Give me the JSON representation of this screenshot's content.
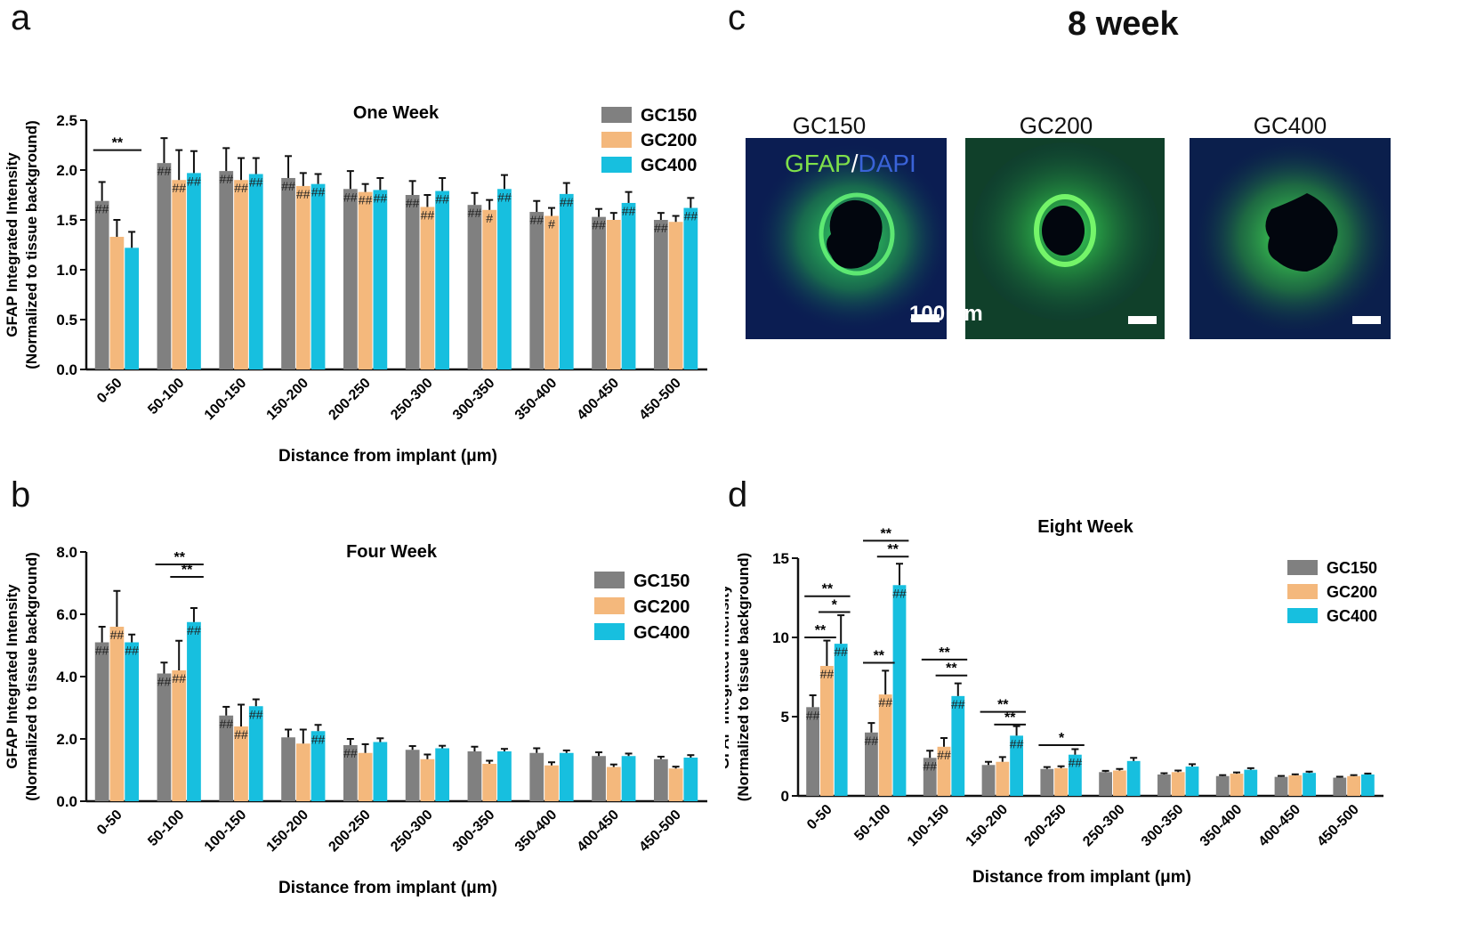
{
  "panels": {
    "a": "a",
    "b": "b",
    "c": "c",
    "d": "d"
  },
  "colors": {
    "GC150": "#808080",
    "GC200": "#f4b87c",
    "GC400": "#17bfdf"
  },
  "micrographs": {
    "title": "8 week",
    "labels": [
      "GC150",
      "GC200",
      "GC400"
    ],
    "stain_gfap": "GFAP",
    "stain_sep": "/",
    "stain_dapi": "DAPI",
    "scale_label": "100 μm"
  },
  "chart_data": [
    {
      "type": "bar",
      "panel": "a",
      "title": "One Week",
      "xlabel": "Distance from implant (μm)",
      "ylabel": [
        "GFAP Integrated Intensity",
        "(Normalized to tissue background)"
      ],
      "ylim": [
        0,
        2.5
      ],
      "yticks": [
        "0.0",
        "0.5",
        "1.0",
        "1.5",
        "2.0",
        "2.5"
      ],
      "categories": [
        "0-50",
        "50-100",
        "100-150",
        "150-200",
        "200-250",
        "250-300",
        "300-350",
        "350-400",
        "400-450",
        "450-500"
      ],
      "series": [
        {
          "name": "GC150",
          "values": [
            1.69,
            2.07,
            1.99,
            1.92,
            1.81,
            1.75,
            1.65,
            1.58,
            1.53,
            1.5
          ],
          "errors": [
            0.19,
            0.25,
            0.23,
            0.22,
            0.18,
            0.14,
            0.12,
            0.11,
            0.08,
            0.07
          ],
          "marks": [
            "##",
            "##",
            "##",
            "##",
            "##",
            "##",
            "##",
            "##",
            "##",
            "##"
          ]
        },
        {
          "name": "GC200",
          "values": [
            1.33,
            1.9,
            1.9,
            1.84,
            1.78,
            1.63,
            1.6,
            1.54,
            1.5,
            1.48
          ],
          "errors": [
            0.17,
            0.3,
            0.22,
            0.13,
            0.08,
            0.12,
            0.1,
            0.08,
            0.07,
            0.06
          ],
          "marks": [
            "",
            "##",
            "##",
            "##",
            "##",
            "##",
            "#",
            "#",
            "",
            ""
          ]
        },
        {
          "name": "GC400",
          "values": [
            1.22,
            1.97,
            1.96,
            1.86,
            1.8,
            1.79,
            1.81,
            1.76,
            1.67,
            1.62
          ],
          "errors": [
            0.16,
            0.22,
            0.16,
            0.1,
            0.12,
            0.13,
            0.14,
            0.11,
            0.11,
            0.1
          ],
          "marks": [
            "",
            "##",
            "##",
            "##",
            "##",
            "##",
            "##",
            "##",
            "##",
            "##"
          ]
        }
      ],
      "significance": [
        {
          "category": "0-50",
          "from": "GC150",
          "to": "GC400",
          "label": "**"
        }
      ]
    },
    {
      "type": "bar",
      "panel": "b",
      "title": "Four Week",
      "xlabel": "Distance from implant (μm)",
      "ylabel": [
        "GFAP Integrated Intensity",
        "(Normalized to tissue background)"
      ],
      "ylim": [
        0,
        8
      ],
      "yticks": [
        "0.0",
        "2.0",
        "4.0",
        "6.0",
        "8.0"
      ],
      "categories": [
        "0-50",
        "50-100",
        "100-150",
        "150-200",
        "200-250",
        "250-300",
        "300-350",
        "350-400",
        "400-450",
        "450-500"
      ],
      "series": [
        {
          "name": "GC150",
          "values": [
            5.1,
            4.1,
            2.75,
            2.05,
            1.8,
            1.65,
            1.6,
            1.55,
            1.45,
            1.35
          ],
          "errors": [
            0.5,
            0.35,
            0.28,
            0.25,
            0.2,
            0.12,
            0.15,
            0.15,
            0.12,
            0.08
          ],
          "marks": [
            "##",
            "##",
            "##",
            "",
            "##",
            "",
            "",
            "",
            "",
            ""
          ]
        },
        {
          "name": "GC200",
          "values": [
            5.6,
            4.2,
            2.4,
            1.85,
            1.55,
            1.35,
            1.2,
            1.15,
            1.1,
            1.05
          ],
          "errors": [
            1.15,
            0.95,
            0.7,
            0.45,
            0.28,
            0.15,
            0.1,
            0.1,
            0.08,
            0.06
          ],
          "marks": [
            "##",
            "##",
            "##",
            "",
            "",
            "",
            "",
            "",
            "",
            ""
          ]
        },
        {
          "name": "GC400",
          "values": [
            5.1,
            5.75,
            3.05,
            2.25,
            1.9,
            1.7,
            1.6,
            1.55,
            1.45,
            1.4
          ],
          "errors": [
            0.25,
            0.45,
            0.22,
            0.2,
            0.12,
            0.08,
            0.08,
            0.08,
            0.08,
            0.08
          ],
          "marks": [
            "##",
            "##",
            "##",
            "##",
            "",
            "",
            "",
            "",
            "",
            ""
          ]
        }
      ],
      "significance": [
        {
          "category": "50-100",
          "from": "GC150",
          "to": "GC400",
          "label": "**"
        },
        {
          "category": "50-100",
          "from": "GC200",
          "to": "GC400",
          "label": "**"
        }
      ]
    },
    {
      "type": "bar",
      "panel": "d",
      "title": "Eight Week",
      "xlabel": "Distance from implant (μm)",
      "ylabel": [
        "GFAP Integrated Intensity",
        "(Normalized to tissue background)"
      ],
      "ylim": [
        0,
        15
      ],
      "yticks": [
        "0",
        "5",
        "10",
        "15"
      ],
      "categories": [
        "0-50",
        "50-100",
        "100-150",
        "150-200",
        "200-250",
        "250-300",
        "300-350",
        "350-400",
        "400-450",
        "450-500"
      ],
      "series": [
        {
          "name": "GC150",
          "values": [
            5.6,
            4.0,
            2.4,
            1.95,
            1.7,
            1.5,
            1.35,
            1.25,
            1.2,
            1.15
          ],
          "errors": [
            0.75,
            0.6,
            0.45,
            0.2,
            0.12,
            0.08,
            0.08,
            0.06,
            0.06,
            0.06
          ],
          "marks": [
            "##",
            "##",
            "##",
            "",
            "",
            "",
            "",
            "",
            "",
            ""
          ]
        },
        {
          "name": "GC200",
          "values": [
            8.2,
            6.4,
            3.1,
            2.15,
            1.75,
            1.6,
            1.5,
            1.4,
            1.3,
            1.25
          ],
          "errors": [
            1.6,
            1.5,
            0.55,
            0.3,
            0.12,
            0.1,
            0.1,
            0.08,
            0.06,
            0.06
          ],
          "marks": [
            "##",
            "##",
            "##",
            "",
            "",
            "",
            "",
            "",
            "",
            ""
          ]
        },
        {
          "name": "GC400",
          "values": [
            9.6,
            13.3,
            6.3,
            3.8,
            2.6,
            2.2,
            1.85,
            1.65,
            1.45,
            1.35
          ],
          "errors": [
            1.8,
            1.35,
            0.8,
            0.6,
            0.35,
            0.2,
            0.15,
            0.1,
            0.08,
            0.06
          ],
          "marks": [
            "##",
            "##",
            "##",
            "##",
            "##",
            "",
            "",
            "",
            "",
            ""
          ]
        }
      ],
      "significance": [
        {
          "category": "0-50",
          "from": "GC150",
          "to": "GC200",
          "label": "**"
        },
        {
          "category": "0-50",
          "from": "GC200",
          "to": "GC400",
          "label": "*"
        },
        {
          "category": "0-50",
          "from": "GC150",
          "to": "GC400",
          "label": "**"
        },
        {
          "category": "50-100",
          "from": "GC150",
          "to": "GC200",
          "label": "**"
        },
        {
          "category": "50-100",
          "from": "GC200",
          "to": "GC400",
          "label": "**"
        },
        {
          "category": "50-100",
          "from": "GC150",
          "to": "GC400",
          "label": "**"
        },
        {
          "category": "100-150",
          "from": "GC200",
          "to": "GC400",
          "label": "**"
        },
        {
          "category": "100-150",
          "from": "GC150",
          "to": "GC400",
          "label": "**"
        },
        {
          "category": "150-200",
          "from": "GC200",
          "to": "GC400",
          "label": "**"
        },
        {
          "category": "150-200",
          "from": "GC150",
          "to": "GC400",
          "label": "**"
        },
        {
          "category": "200-250",
          "from": "GC150",
          "to": "GC400",
          "label": "*"
        }
      ]
    }
  ]
}
